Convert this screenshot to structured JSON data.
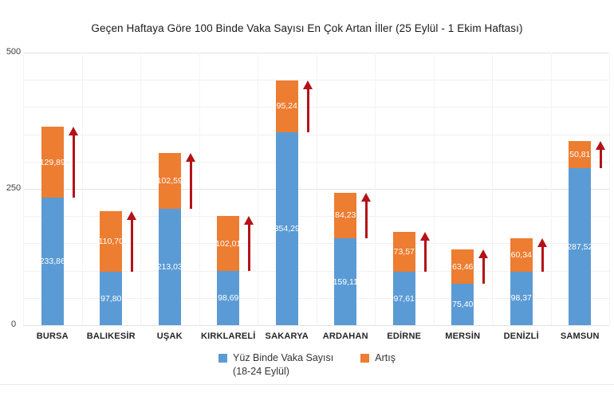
{
  "title": "Geçen Haftaya Göre 100 Binde Vaka Sayısı En Çok Artan İller (25 Eylül - 1 Ekim Haftası)",
  "chart_data": {
    "type": "bar",
    "stacked": true,
    "title": "Geçen Haftaya Göre 100 Binde Vaka Sayısı En Çok Artan İller (25 Eylül - 1 Ekim Haftası)",
    "categories": [
      "BURSA",
      "BALIKESİR",
      "UŞAK",
      "KIRKLARELİ",
      "SAKARYA",
      "ARDAHAN",
      "EDİRNE",
      "MERSİN",
      "DENİZLİ",
      "SAMSUN"
    ],
    "series": [
      {
        "name": "Yüz Binde Vaka Sayısı (18-24 Eylül)",
        "color": "#5B9BD5",
        "values": [
          233.86,
          97.8,
          213.03,
          98.69,
          354.29,
          159.11,
          97.61,
          75.4,
          98.37,
          287.52
        ],
        "labels": [
          "233,86",
          "97,80",
          "213,03",
          "98,69",
          "354,29",
          "159,11",
          "97,61",
          "75,40",
          "98,37",
          "287,52"
        ]
      },
      {
        "name": "Artış",
        "color": "#ED7D31",
        "values": [
          129.89,
          110.7,
          102.59,
          102.01,
          95.24,
          84.23,
          73.57,
          63.46,
          60.34,
          50.81
        ],
        "labels": [
          "129,89",
          "110,70",
          "102,59",
          "102,01",
          "95,24",
          "84,23",
          "73,57",
          "63,46",
          "60,34",
          "50,81"
        ]
      }
    ],
    "ylim": [
      0,
      500
    ],
    "yticks": [
      0,
      250,
      500
    ],
    "ytick_labels": [
      "0",
      "250",
      "500"
    ],
    "grid": true,
    "grid_minor_step": 50,
    "legend_position": "bottom",
    "annotations": "dark red upward arrow beside each Artış segment spanning its height"
  },
  "legend": {
    "series1_line1": "Yüz Binde Vaka Sayısı",
    "series1_line2": "(18-24 Eylül)",
    "series2": "Artış"
  },
  "colors": {
    "blue": "#5B9BD5",
    "orange": "#ED7D31",
    "arrow_red": "#b31317"
  }
}
